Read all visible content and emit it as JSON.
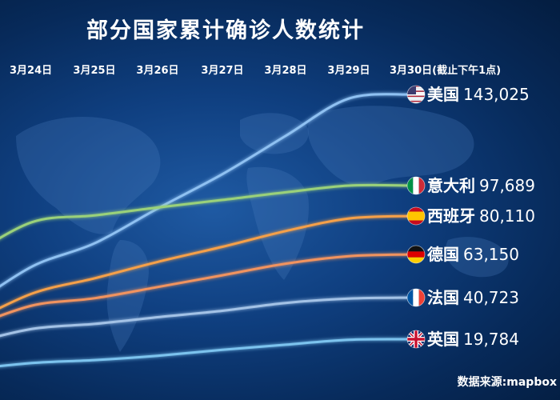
{
  "chart_data": {
    "type": "line",
    "title": "部分国家累计确诊人数统计",
    "x": [
      "3月24日",
      "3月25日",
      "3月26日",
      "3月27日",
      "3月28日",
      "3月29日",
      "3月30日(截止下午1点)"
    ],
    "series": [
      {
        "name": "美国",
        "values": [
          53740,
          65778,
          83836,
          101657,
          121478,
          140886,
          143025
        ],
        "final_label": "143,025",
        "color": "#8fc1f2"
      },
      {
        "name": "意大利",
        "values": [
          69176,
          74386,
          80589,
          86498,
          92472,
          97689,
          97689
        ],
        "final_label": "97,689",
        "color": "#9ad17a"
      },
      {
        "name": "西班牙",
        "values": [
          39673,
          47610,
          56188,
          64059,
          72248,
          78797,
          80110
        ],
        "final_label": "80,110",
        "color": "#f5a04a"
      },
      {
        "name": "德国",
        "values": [
          32986,
          37323,
          43938,
          50871,
          57695,
          62095,
          63150
        ],
        "final_label": "63,150",
        "color": "#f1935f"
      },
      {
        "name": "法国",
        "values": [
          22304,
          25233,
          29155,
          32964,
          37575,
          40174,
          40723
        ],
        "final_label": "40,723",
        "color": "#a3c2e6"
      },
      {
        "name": "英国",
        "values": [
          8077,
          9529,
          11658,
          14543,
          17089,
          19522,
          19784
        ],
        "final_label": "19,784",
        "color": "#7cc3ee"
      }
    ],
    "source": "数据来源:mapbox",
    "grid": false,
    "legend": "line-end labels"
  }
}
